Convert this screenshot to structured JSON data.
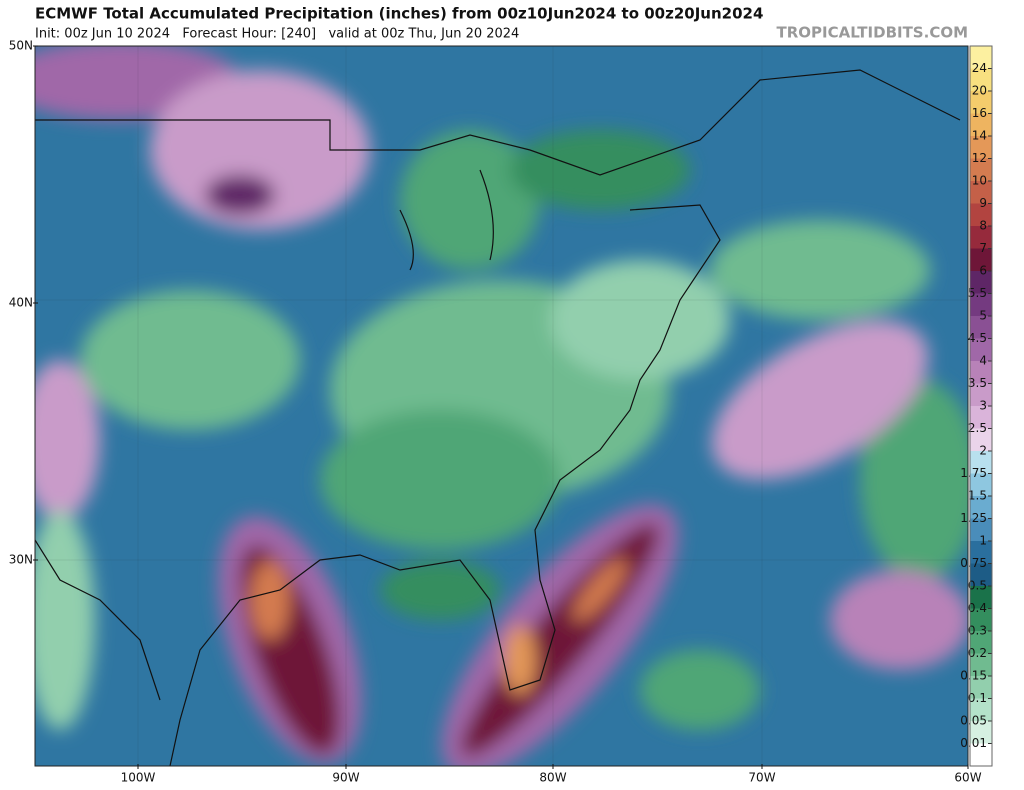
{
  "header": {
    "title": "ECMWF Total Accumulated Precipitation (inches) from 00z10Jun2024 to 00z20Jun2024",
    "subtitle": "Init: 00z Jun 10 2024   Forecast Hour: [240]   valid at 00z Thu, Jun 20 2024",
    "watermark": "TROPICALTIDBITS.COM"
  },
  "map": {
    "lat_labels": [
      "50N",
      "40N",
      "30N"
    ],
    "lon_labels": [
      "100W",
      "90W",
      "80W",
      "70W",
      "60W"
    ]
  },
  "colorbar": {
    "below_color": "#ffffff",
    "bins": [
      {
        "label": "0.01",
        "color": "#d6f0e2"
      },
      {
        "label": "0.05",
        "color": "#b4e2ca"
      },
      {
        "label": "0.1",
        "color": "#92cfad"
      },
      {
        "label": "0.15",
        "color": "#70bb90"
      },
      {
        "label": "0.2",
        "color": "#50a676"
      },
      {
        "label": "0.3",
        "color": "#348e5e"
      },
      {
        "label": "0.4",
        "color": "#1a724a"
      },
      {
        "label": "0.5",
        "color": "#1d5c86"
      },
      {
        "label": "0.75",
        "color": "#2a6f9e"
      },
      {
        "label": "1",
        "color": "#4a8dba"
      },
      {
        "label": "1.25",
        "color": "#6aacd0"
      },
      {
        "label": "1.5",
        "color": "#8ec7e0"
      },
      {
        "label": "1.75",
        "color": "#b8e0ee"
      },
      {
        "label": "2",
        "color": "#ead4ea"
      },
      {
        "label": "2.5",
        "color": "#dab4da"
      },
      {
        "label": "3",
        "color": "#c99bc9"
      },
      {
        "label": "3.5",
        "color": "#b882b8"
      },
      {
        "label": "4",
        "color": "#a068a8"
      },
      {
        "label": "4.5",
        "color": "#8a5094"
      },
      {
        "label": "5",
        "color": "#743a80"
      },
      {
        "label": "5.5",
        "color": "#5e2666"
      },
      {
        "label": "6",
        "color": "#6e1638"
      },
      {
        "label": "7",
        "color": "#962a3c"
      },
      {
        "label": "8",
        "color": "#b24440"
      },
      {
        "label": "9",
        "color": "#c46048"
      },
      {
        "label": "10",
        "color": "#d47c50"
      },
      {
        "label": "12",
        "color": "#e49858"
      },
      {
        "label": "14",
        "color": "#eeb460"
      },
      {
        "label": "16",
        "color": "#f4cc6c"
      },
      {
        "label": "20",
        "color": "#f8e080"
      },
      {
        "label": "24",
        "color": "#fcf0a0"
      }
    ]
  }
}
